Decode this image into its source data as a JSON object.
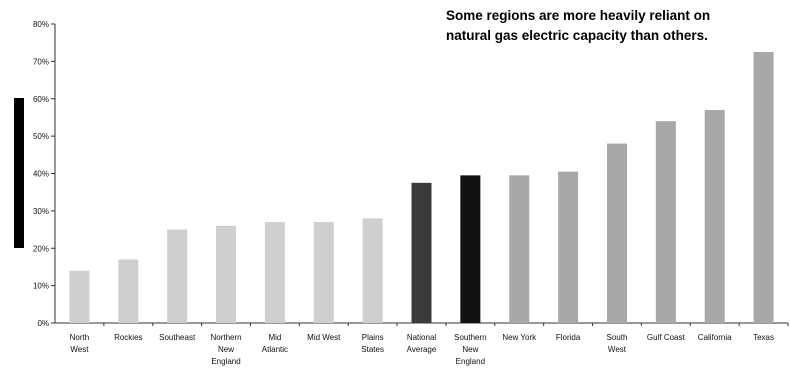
{
  "chart_data": {
    "type": "bar",
    "title_lines": [
      "Some regions are more heavily reliant on",
      "natural gas electric capacity than others."
    ],
    "xlabel": "",
    "ylabel": "",
    "ylim": [
      0,
      80
    ],
    "y_ticks": [
      "0%",
      "10%",
      "20%",
      "30%",
      "40%",
      "50%",
      "60%",
      "70%",
      "80%"
    ],
    "categories": [
      [
        "North",
        "West"
      ],
      [
        "Rockies"
      ],
      [
        "Southeast"
      ],
      [
        "Northern",
        "New",
        "England"
      ],
      [
        "Mid",
        "Atlantic"
      ],
      [
        "Mid West"
      ],
      [
        "Plains",
        "States"
      ],
      [
        "National",
        "Average"
      ],
      [
        "Southern",
        "New",
        "England"
      ],
      [
        "New York"
      ],
      [
        "Florida"
      ],
      [
        "South",
        "West"
      ],
      [
        "Gulf Coast"
      ],
      [
        "California"
      ],
      [
        "Texas"
      ]
    ],
    "values": [
      14,
      17,
      25,
      26,
      27,
      27,
      28,
      37.5,
      39.5,
      39.5,
      40.5,
      48,
      54,
      57,
      72.5
    ],
    "grid": false,
    "legend": "none",
    "colors": {
      "light": "#cfcfcf",
      "medium": "#a8a8a8",
      "dark": "#3a3a3a",
      "black": "#111111"
    },
    "bar_tones": [
      "light",
      "light",
      "light",
      "light",
      "light",
      "light",
      "light",
      "dark",
      "black",
      "medium",
      "medium",
      "medium",
      "medium",
      "medium",
      "medium"
    ]
  }
}
